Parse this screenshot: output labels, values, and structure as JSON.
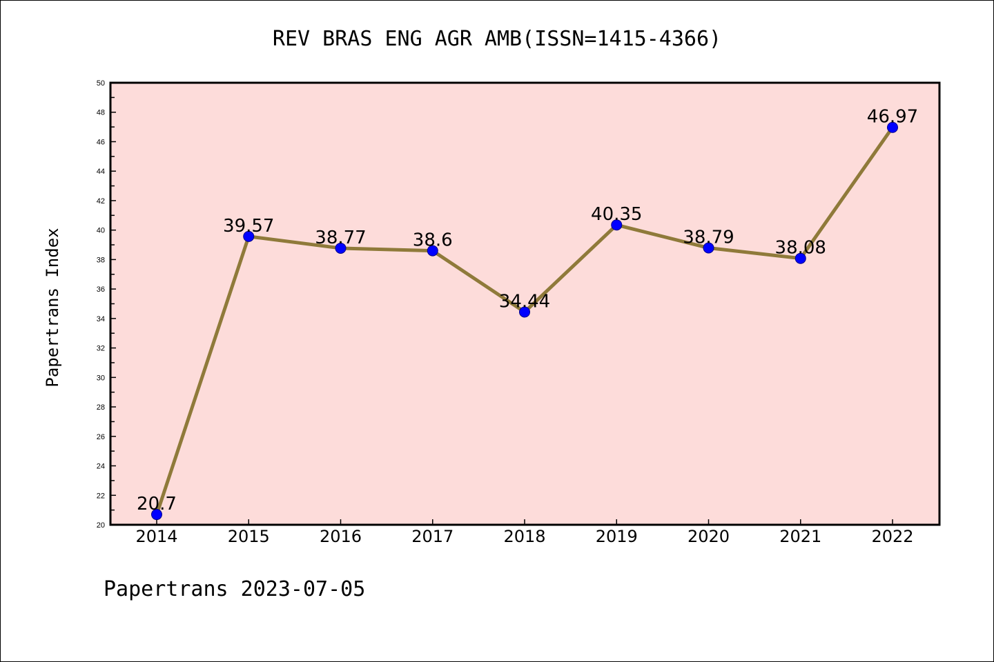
{
  "chart_data": {
    "type": "line",
    "title": "REV BRAS ENG AGR AMB(ISSN=1415-4366)",
    "xlabel": "",
    "ylabel": "Papertrans Index",
    "categories": [
      "2014",
      "2015",
      "2016",
      "2017",
      "2018",
      "2019",
      "2020",
      "2021",
      "2022"
    ],
    "series": [
      {
        "values": [
          20.7,
          39.57,
          38.77,
          38.6,
          34.44,
          40.35,
          38.79,
          38.08,
          46.97
        ],
        "labels": [
          "20.7",
          "39.57",
          "38.77",
          "38.6",
          "34.44",
          "40.35",
          "38.79",
          "38.08",
          "46.97"
        ]
      }
    ],
    "ylim": [
      20,
      50
    ],
    "yticks": [
      "20",
      "22",
      "24",
      "26",
      "28",
      "30",
      "32",
      "34",
      "36",
      "38",
      "40",
      "42",
      "44",
      "46",
      "48",
      "50"
    ],
    "grid": false,
    "colors": {
      "plot_background": "#fddcda",
      "line": "#8f7a3a",
      "marker": "#0000ff"
    }
  },
  "footer": "Papertrans 2023-07-05"
}
